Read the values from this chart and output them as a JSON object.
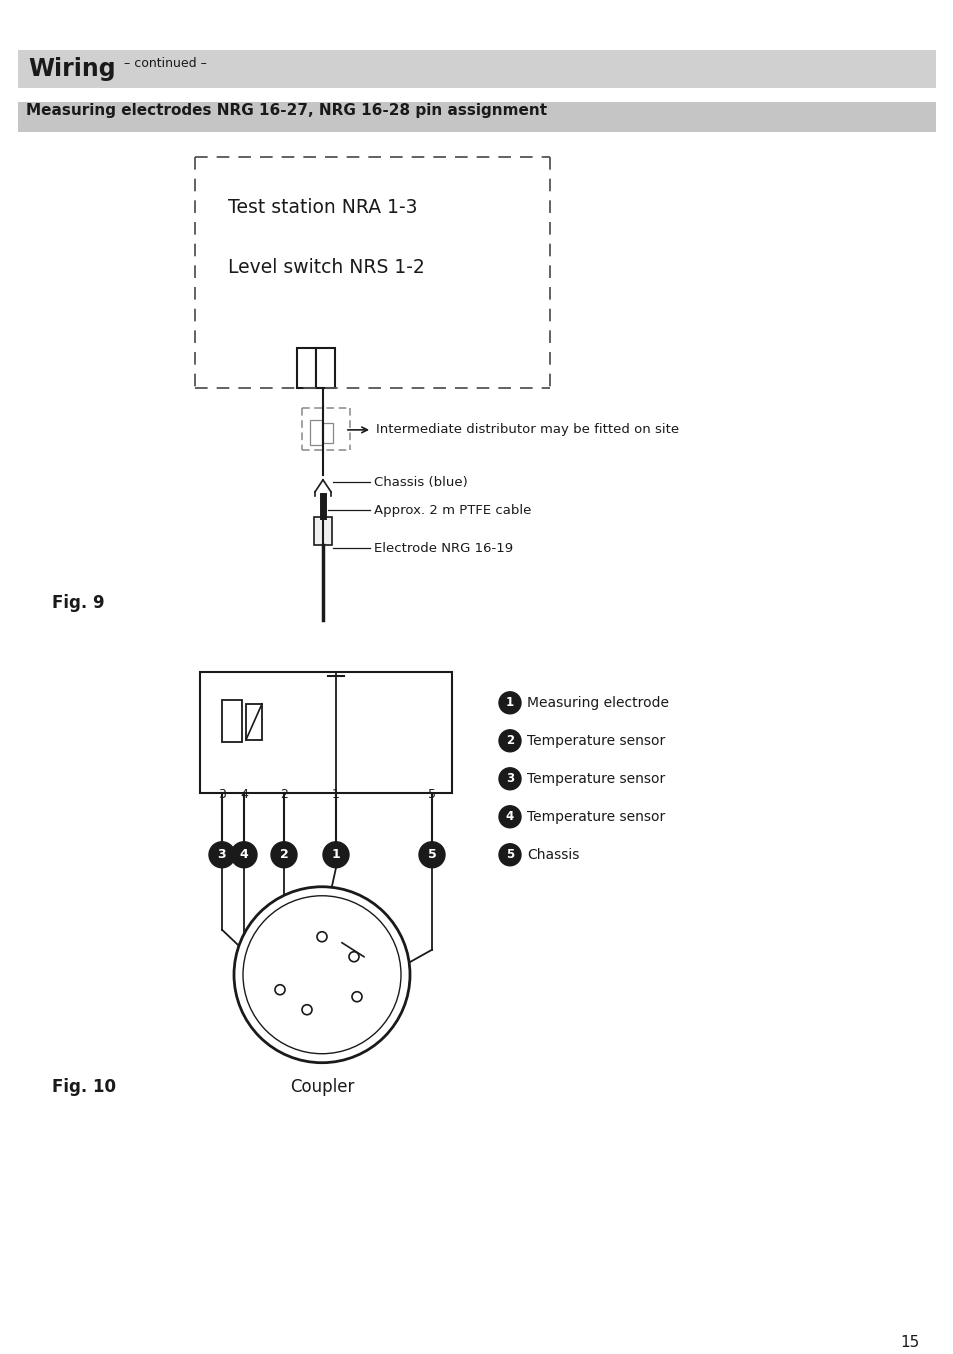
{
  "page_bg": "#ffffff",
  "header_bg": "#d0d0d0",
  "subheader_bg": "#c5c5c5",
  "header_text": "Wiring",
  "header_continued": " – continued –",
  "subheader_text": "Measuring electrodes NRG 16-27, NRG 16-28 pin assignment",
  "fig9_label": "Fig. 9",
  "fig10_label": "Fig. 10",
  "coupler_label": "Coupler",
  "page_number": "15",
  "legend_items": [
    {
      "num": "1",
      "text": "Measuring electrode"
    },
    {
      "num": "2",
      "text": "Temperature sensor"
    },
    {
      "num": "3",
      "text": "Temperature sensor"
    },
    {
      "num": "4",
      "text": "Temperature sensor"
    },
    {
      "num": "5",
      "text": "Chassis"
    }
  ],
  "annotations_fig9": [
    "Intermediate distributor may be fitted on site",
    "Chassis (blue)",
    "Approx. 2 m PTFE cable",
    "Electrode NRG 16-19"
  ],
  "dashed_box_color": "#555555",
  "line_color": "#1a1a1a",
  "badge_color": "#1a1a1a",
  "badge_text_color": "#ffffff"
}
